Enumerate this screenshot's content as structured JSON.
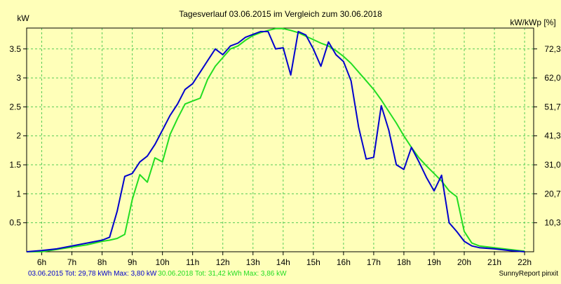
{
  "chart_data": {
    "type": "line",
    "title": "Tagesverlauf 03.06.2015 im Vergleich zum 30.06.2018",
    "ylabel_left": "kW",
    "ylabel_right": "kW/kWp [%]",
    "xlim": [
      5.5,
      22.3
    ],
    "ylim": [
      0,
      3.86
    ],
    "x_ticks": [
      6,
      7,
      8,
      9,
      10,
      11,
      12,
      13,
      14,
      15,
      16,
      17,
      18,
      19,
      20,
      21,
      22
    ],
    "x_tick_labels": [
      "6h",
      "7h",
      "8h",
      "9h",
      "10h",
      "11h",
      "12h",
      "13h",
      "14h",
      "15h",
      "16h",
      "17h",
      "18h",
      "19h",
      "20h",
      "21h",
      "22h"
    ],
    "y_ticks": [
      0.5,
      1,
      1.5,
      2,
      2.5,
      3,
      3.5
    ],
    "y_tick_labels": [
      "0.5",
      "1",
      "1.5",
      "2",
      "2.5",
      "3",
      "3.5"
    ],
    "y_right_ticks": [
      {
        "y": 0.5,
        "label": "10,3"
      },
      {
        "y": 1.0,
        "label": "20,7"
      },
      {
        "y": 1.5,
        "label": "31,0"
      },
      {
        "y": 2.0,
        "label": "41,3"
      },
      {
        "y": 2.5,
        "label": "51,7"
      },
      {
        "y": 3.0,
        "label": "62,0"
      },
      {
        "y": 3.5,
        "label": "72,3"
      }
    ],
    "grid": true,
    "series": [
      {
        "name": "03.06.2015",
        "color": "#0000CC",
        "points": [
          [
            5.5,
            0.0
          ],
          [
            6.0,
            0.02
          ],
          [
            6.5,
            0.05
          ],
          [
            7.0,
            0.1
          ],
          [
            7.5,
            0.15
          ],
          [
            8.0,
            0.2
          ],
          [
            8.25,
            0.25
          ],
          [
            8.5,
            0.7
          ],
          [
            8.75,
            1.3
          ],
          [
            9.0,
            1.35
          ],
          [
            9.25,
            1.55
          ],
          [
            9.5,
            1.65
          ],
          [
            9.75,
            1.85
          ],
          [
            10.0,
            2.1
          ],
          [
            10.25,
            2.35
          ],
          [
            10.5,
            2.55
          ],
          [
            10.75,
            2.8
          ],
          [
            11.0,
            2.9
          ],
          [
            11.25,
            3.1
          ],
          [
            11.5,
            3.3
          ],
          [
            11.75,
            3.5
          ],
          [
            12.0,
            3.4
          ],
          [
            12.25,
            3.55
          ],
          [
            12.5,
            3.6
          ],
          [
            12.75,
            3.7
          ],
          [
            13.0,
            3.75
          ],
          [
            13.25,
            3.8
          ],
          [
            13.5,
            3.8
          ],
          [
            13.75,
            3.5
          ],
          [
            14.0,
            3.52
          ],
          [
            14.25,
            3.05
          ],
          [
            14.5,
            3.8
          ],
          [
            14.75,
            3.74
          ],
          [
            15.0,
            3.5
          ],
          [
            15.25,
            3.2
          ],
          [
            15.5,
            3.62
          ],
          [
            15.75,
            3.4
          ],
          [
            16.0,
            3.28
          ],
          [
            16.25,
            2.95
          ],
          [
            16.5,
            2.15
          ],
          [
            16.75,
            1.6
          ],
          [
            17.0,
            1.63
          ],
          [
            17.25,
            2.52
          ],
          [
            17.5,
            2.1
          ],
          [
            17.75,
            1.5
          ],
          [
            18.0,
            1.42
          ],
          [
            18.25,
            1.8
          ],
          [
            18.5,
            1.55
          ],
          [
            18.75,
            1.28
          ],
          [
            19.0,
            1.05
          ],
          [
            19.25,
            1.32
          ],
          [
            19.5,
            0.5
          ],
          [
            19.75,
            0.35
          ],
          [
            20.0,
            0.18
          ],
          [
            20.25,
            0.1
          ],
          [
            20.5,
            0.07
          ],
          [
            21.0,
            0.05
          ],
          [
            21.5,
            0.02
          ],
          [
            22.0,
            0.0
          ]
        ]
      },
      {
        "name": "30.06.2018",
        "color": "#22DD22",
        "points": [
          [
            5.5,
            0.0
          ],
          [
            6.0,
            0.0
          ],
          [
            6.5,
            0.04
          ],
          [
            7.0,
            0.08
          ],
          [
            7.5,
            0.12
          ],
          [
            8.0,
            0.18
          ],
          [
            8.25,
            0.2
          ],
          [
            8.5,
            0.23
          ],
          [
            8.75,
            0.3
          ],
          [
            9.0,
            0.9
          ],
          [
            9.25,
            1.33
          ],
          [
            9.5,
            1.2
          ],
          [
            9.75,
            1.62
          ],
          [
            10.0,
            1.55
          ],
          [
            10.25,
            2.02
          ],
          [
            10.5,
            2.3
          ],
          [
            10.75,
            2.55
          ],
          [
            11.0,
            2.6
          ],
          [
            11.25,
            2.65
          ],
          [
            11.5,
            2.98
          ],
          [
            11.75,
            3.2
          ],
          [
            12.0,
            3.35
          ],
          [
            12.25,
            3.5
          ],
          [
            12.5,
            3.55
          ],
          [
            12.75,
            3.65
          ],
          [
            13.0,
            3.73
          ],
          [
            13.25,
            3.78
          ],
          [
            13.5,
            3.82
          ],
          [
            13.75,
            3.85
          ],
          [
            14.0,
            3.85
          ],
          [
            14.25,
            3.82
          ],
          [
            14.5,
            3.78
          ],
          [
            14.75,
            3.72
          ],
          [
            15.0,
            3.66
          ],
          [
            15.25,
            3.6
          ],
          [
            15.5,
            3.55
          ],
          [
            15.75,
            3.47
          ],
          [
            16.0,
            3.37
          ],
          [
            16.25,
            3.25
          ],
          [
            16.5,
            3.1
          ],
          [
            16.75,
            2.95
          ],
          [
            17.0,
            2.8
          ],
          [
            17.25,
            2.62
          ],
          [
            17.5,
            2.42
          ],
          [
            17.75,
            2.22
          ],
          [
            18.0,
            2.0
          ],
          [
            18.25,
            1.8
          ],
          [
            18.5,
            1.62
          ],
          [
            18.75,
            1.48
          ],
          [
            19.0,
            1.35
          ],
          [
            19.25,
            1.22
          ],
          [
            19.5,
            1.05
          ],
          [
            19.75,
            0.95
          ],
          [
            20.0,
            0.35
          ],
          [
            20.25,
            0.15
          ],
          [
            20.5,
            0.1
          ],
          [
            21.0,
            0.07
          ],
          [
            21.5,
            0.04
          ],
          [
            22.0,
            0.01
          ]
        ]
      }
    ]
  },
  "footer": {
    "series1_stats": "03.06.2015 Tot: 29,78 kWh Max: 3,80 kW",
    "series2_stats": "30.06.2018 Tot: 31,42 kWh Max: 3,86 kW",
    "credit": "SunnyReport pinxit"
  },
  "colors": {
    "background": "#FFFFB9",
    "grid": "#55CC55",
    "frame": "#000000"
  }
}
